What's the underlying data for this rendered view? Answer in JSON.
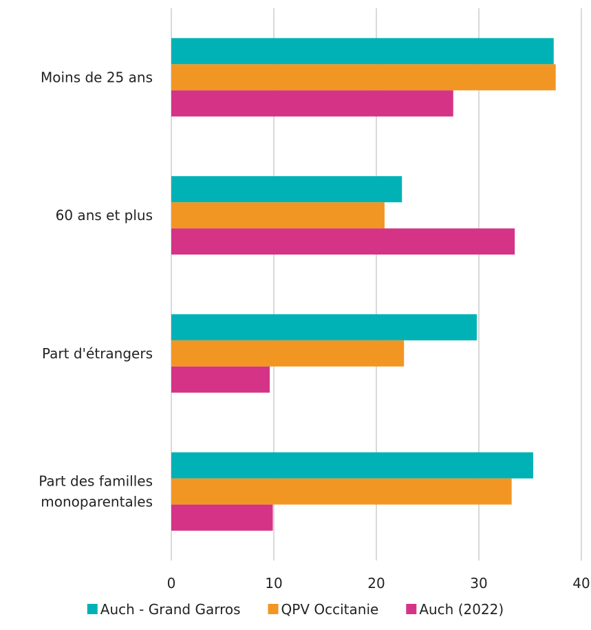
{
  "chart_data": {
    "type": "bar",
    "orientation": "horizontal",
    "categories": [
      [
        "Moins de 25 ans"
      ],
      [
        "60 ans et plus"
      ],
      [
        "Part d'étrangers"
      ],
      [
        "Part des familles",
        "monoparentales"
      ]
    ],
    "series": [
      {
        "name": "Auch - Grand Garros",
        "color": "#00b2b5",
        "values": [
          37.3,
          22.5,
          29.8,
          35.3
        ]
      },
      {
        "name": "QPV Occitanie",
        "color": "#f29623",
        "values": [
          37.5,
          20.8,
          22.7,
          33.2
        ]
      },
      {
        "name": "Auch (2022)",
        "color": "#d53386",
        "values": [
          27.5,
          33.5,
          9.6,
          9.9
        ]
      }
    ],
    "xlim": [
      0,
      40
    ],
    "xticks": [
      "0",
      "10",
      "20",
      "30",
      "40"
    ],
    "grid": "vertical",
    "legend_position": "bottom"
  }
}
